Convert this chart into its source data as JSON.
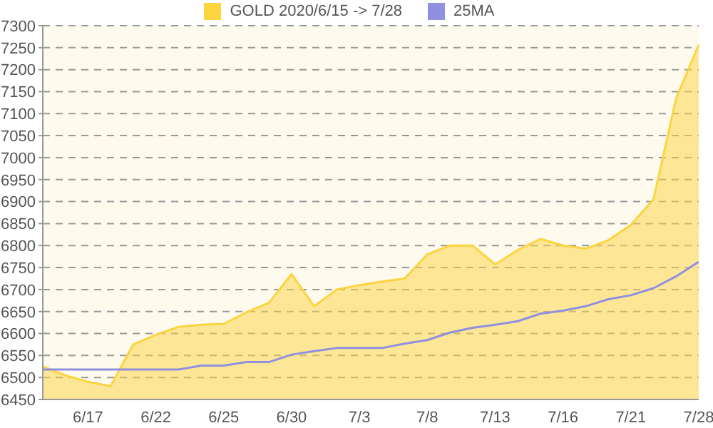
{
  "chart_data": {
    "type": "area",
    "categories": [
      null,
      null,
      "6/17",
      null,
      null,
      "6/22",
      null,
      null,
      "6/25",
      null,
      null,
      "6/30",
      null,
      null,
      "7/3",
      null,
      null,
      "7/8",
      null,
      null,
      "7/13",
      null,
      null,
      "7/16",
      null,
      null,
      "7/21",
      null,
      null,
      "7/28"
    ],
    "series": [
      {
        "name": "GOLD 2020/6/15 -> 7/28",
        "color": "#fcd440",
        "values": [
          6525,
          6505,
          6490,
          6480,
          6575,
          6597,
          6615,
          6620,
          6622,
          6648,
          6670,
          6735,
          6662,
          6700,
          6710,
          6718,
          6725,
          6780,
          6800,
          6800,
          6757,
          6790,
          6815,
          6800,
          6793,
          6812,
          6847,
          6905,
          7135,
          7257
        ]
      },
      {
        "name": "25MA",
        "type": "line",
        "color": "#9090e0",
        "values": [
          6518,
          6518,
          6518,
          6518,
          6518,
          6518,
          6518,
          6527,
          6527,
          6535,
          6535,
          6552,
          6560,
          6567,
          6567,
          6567,
          6577,
          6585,
          6602,
          6613,
          6620,
          6628,
          6645,
          6652,
          6662,
          6678,
          6687,
          6703,
          6730,
          6763
        ]
      }
    ],
    "ylim": [
      6450,
      7300
    ],
    "yticks": [
      6450,
      6500,
      6550,
      6600,
      6650,
      6700,
      6750,
      6800,
      6850,
      6900,
      6950,
      7000,
      7050,
      7100,
      7150,
      7200,
      7250,
      7300
    ],
    "grid": "y",
    "legend": "top"
  }
}
